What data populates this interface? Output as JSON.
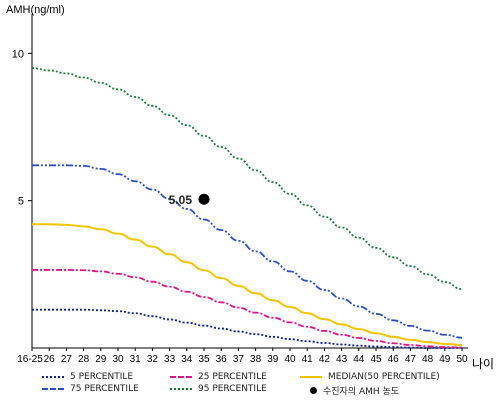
{
  "chart_data": {
    "type": "line",
    "ylabel": "AMH(ng/ml)",
    "xlabel": "나이",
    "ylim": [
      0,
      11.2
    ],
    "yticks": [
      5,
      10
    ],
    "categories": [
      "16-25",
      "26",
      "27",
      "28",
      "29",
      "30",
      "31",
      "32",
      "33",
      "34",
      "35",
      "36",
      "37",
      "38",
      "39",
      "40",
      "41",
      "42",
      "43",
      "44",
      "45",
      "46",
      "47",
      "48",
      "49",
      "50"
    ],
    "series": [
      {
        "name": "5 PERCENTILE",
        "color": "#0b1f8a",
        "dash": "2,2",
        "values": [
          1.3,
          1.3,
          1.3,
          1.3,
          1.28,
          1.25,
          1.18,
          1.08,
          0.97,
          0.86,
          0.76,
          0.66,
          0.56,
          0.47,
          0.38,
          0.3,
          0.23,
          0.17,
          0.12,
          0.08,
          0.05,
          0.03,
          0.01,
          0.0,
          0.0,
          0.0
        ]
      },
      {
        "name": "25 PERCENTILE",
        "color": "#e0148c",
        "dash": "6,2,2,2",
        "values": [
          2.65,
          2.65,
          2.65,
          2.64,
          2.6,
          2.52,
          2.4,
          2.25,
          2.08,
          1.91,
          1.73,
          1.55,
          1.37,
          1.2,
          1.03,
          0.87,
          0.72,
          0.58,
          0.45,
          0.34,
          0.24,
          0.16,
          0.1,
          0.06,
          0.03,
          0.02
        ]
      },
      {
        "name": "MEDIAN(50 PERCENTILE)",
        "color": "#f2c500",
        "dash": "",
        "values": [
          4.2,
          4.2,
          4.18,
          4.13,
          4.03,
          3.88,
          3.68,
          3.44,
          3.18,
          2.91,
          2.64,
          2.37,
          2.11,
          1.86,
          1.62,
          1.39,
          1.18,
          0.98,
          0.8,
          0.64,
          0.5,
          0.38,
          0.28,
          0.2,
          0.14,
          0.1
        ]
      },
      {
        "name": "75 PERCENTILE",
        "color": "#2a4fc4",
        "dash": "7,2,2,2,2,2",
        "values": [
          6.2,
          6.2,
          6.2,
          6.18,
          6.08,
          5.9,
          5.66,
          5.38,
          5.06,
          4.72,
          4.36,
          4.0,
          3.64,
          3.28,
          2.94,
          2.6,
          2.28,
          1.97,
          1.68,
          1.41,
          1.16,
          0.94,
          0.75,
          0.59,
          0.45,
          0.35
        ]
      },
      {
        "name": "95 PERCENTILE",
        "color": "#1f7a3a",
        "dash": "2,2",
        "values": [
          9.5,
          9.42,
          9.32,
          9.18,
          9.0,
          8.78,
          8.52,
          8.22,
          7.9,
          7.56,
          7.2,
          6.82,
          6.43,
          6.03,
          5.63,
          5.23,
          4.84,
          4.46,
          4.09,
          3.74,
          3.4,
          3.08,
          2.78,
          2.5,
          2.24,
          2.0
        ]
      }
    ],
    "marker": {
      "label": "수진자의 AMH 농도",
      "x": "35",
      "y": 5.05,
      "value_label": "5.05"
    },
    "grid": false,
    "legend_position": "bottom"
  }
}
